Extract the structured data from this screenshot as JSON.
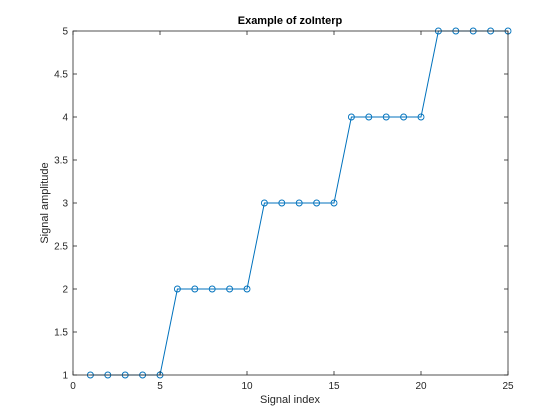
{
  "chart_data": {
    "type": "line",
    "title": "Example of zoInterp",
    "xlabel": "Signal index",
    "ylabel": "Signal amplitude",
    "xlim": [
      0,
      25
    ],
    "ylim": [
      1,
      5
    ],
    "xticks": [
      "0",
      "5",
      "10",
      "15",
      "20",
      "25"
    ],
    "yticks": [
      "1",
      "1.5",
      "2",
      "2.5",
      "3",
      "3.5",
      "4",
      "4.5",
      "5"
    ],
    "grid": false,
    "marker": "circle",
    "series": [
      {
        "x": [
          1,
          2,
          3,
          4,
          5,
          6,
          7,
          8,
          9,
          10,
          11,
          12,
          13,
          14,
          15,
          16,
          17,
          18,
          19,
          20,
          21,
          22,
          23,
          24,
          25
        ],
        "values": [
          1,
          1,
          1,
          1,
          1,
          2,
          2,
          2,
          2,
          2,
          3,
          3,
          3,
          3,
          3,
          4,
          4,
          4,
          4,
          4,
          5,
          5,
          5,
          5,
          5
        ]
      }
    ],
    "colors": {
      "series": "#0072bd",
      "axes": "#262626"
    }
  }
}
